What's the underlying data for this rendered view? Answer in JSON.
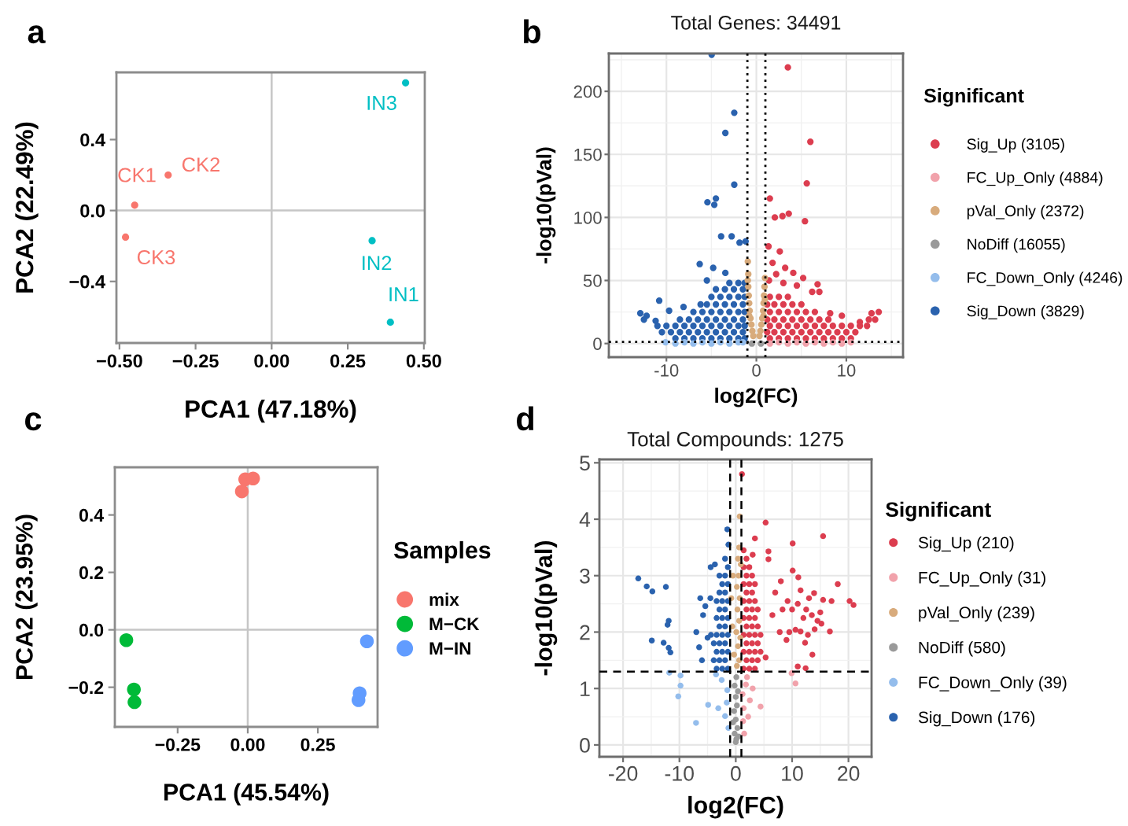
{
  "chart_data": [
    {
      "type": "scatter",
      "xlabel": "PCA1 (47.18%)",
      "ylabel": "PCA2 (22.49%)",
      "xlim": [
        -0.51,
        0.503
      ],
      "ylim": [
        -0.747,
        0.779
      ],
      "xticks": [
        {
          "value": -0.5,
          "label": "−0.50"
        },
        {
          "value": -0.25,
          "label": "−0.25"
        },
        {
          "value": 0,
          "label": "0.00"
        },
        {
          "value": 0.25,
          "label": "0.25"
        },
        {
          "value": 0.5,
          "label": "0.50"
        }
      ],
      "yticks": [
        {
          "value": -0.4,
          "label": "−0.4"
        },
        {
          "value": 0,
          "label": "0.0"
        },
        {
          "value": 0.4,
          "label": "0.4"
        }
      ],
      "marker": "circle",
      "series": [
        {
          "color": "#f8766d",
          "x": [
            -0.45,
            -0.34,
            -0.48
          ],
          "values": [
            0.03,
            0.2,
            -0.15
          ]
        },
        {
          "color": "#00bfc4",
          "x": [
            0.39,
            0.33,
            0.44
          ],
          "values": [
            -0.63,
            -0.17,
            0.72
          ]
        }
      ],
      "ref_lines": [
        {
          "axis": "x",
          "value": 0,
          "color": "#c6c6c6"
        },
        {
          "axis": "y",
          "value": 0,
          "color": "#c6c6c6"
        }
      ],
      "annotations": [
        "a",
        {
          "text": "CK1",
          "x": -0.45,
          "y": 0.03
        },
        {
          "text": "CK2",
          "x": -0.34,
          "y": 0.2
        },
        {
          "text": "CK3",
          "x": -0.48,
          "y": -0.15
        },
        {
          "text": "IN1",
          "x": 0.39,
          "y": -0.63
        },
        {
          "text": "IN2",
          "x": 0.33,
          "y": -0.17
        },
        {
          "text": "IN3",
          "x": 0.44,
          "y": 0.72
        }
      ]
    },
    {
      "type": "scatter",
      "title": "Total Genes: 34491",
      "xlabel": "log2(FC)",
      "ylabel": "-log10(pVal)",
      "legend_title": "Significant",
      "legend": "right",
      "grid": true,
      "marker": "circle",
      "xlim": [
        -16.4,
        16.3
      ],
      "ylim": [
        -10.8,
        230
      ],
      "xticks": [
        -10,
        0,
        10
      ],
      "yticks": [
        0,
        50,
        100,
        150,
        200
      ],
      "series": [
        {
          "name": "Sig_Up (3105)",
          "color": "#dc3d4f",
          "x": [
            3.5,
            6.0,
            5.6,
            1.5,
            2.05,
            2.9,
            3.6,
            5.4,
            1.35,
            2.6,
            1.8,
            3.2,
            4.1,
            2.2,
            5.2,
            1.4,
            4.5,
            6.2,
            7.0,
            6.8,
            3.0,
            12.8,
            13.6,
            11.5,
            9.5,
            8.2,
            1.5,
            2.5,
            3.5,
            4.5,
            5.5,
            6.5,
            7.5,
            8.5,
            9.5,
            10.5,
            1.2,
            2,
            3,
            4,
            5,
            6,
            7,
            8,
            9,
            10,
            11,
            1.5,
            2.5,
            3.5,
            4.5,
            5.5,
            6.5,
            7.5,
            8.5,
            9.5,
            10.5,
            11.5,
            12.3,
            1.2,
            2,
            3,
            4,
            5,
            6,
            7,
            8,
            12.5,
            13.2,
            1.5,
            2.5,
            3.5,
            4.5,
            5.5,
            6.5,
            1.2,
            2,
            3,
            4,
            5,
            1.5,
            2.5,
            3.5
          ],
          "values": [
            219,
            160,
            127,
            115,
            100,
            101,
            103,
            97,
            77,
            73,
            64,
            60,
            56,
            55,
            52,
            50,
            46,
            41,
            41,
            47,
            48,
            24,
            25,
            17,
            22,
            24,
            4,
            4,
            4,
            4,
            4,
            4,
            4,
            4,
            4,
            4,
            9,
            9,
            9,
            9,
            9,
            9,
            9,
            9,
            9,
            9,
            9,
            14,
            14,
            14,
            14,
            14,
            14,
            14,
            14,
            14,
            14,
            14,
            14,
            19,
            19,
            19,
            19,
            19,
            19,
            19,
            19,
            19,
            19,
            25,
            25,
            25,
            25,
            25,
            25,
            31,
            31,
            31,
            31,
            31,
            37,
            37,
            37
          ]
        },
        {
          "name": "FC_Up_Only (4884)",
          "color": "#f1a2ab",
          "x": [
            1.5,
            2.5,
            3.5,
            4.5,
            5.5,
            6.5,
            7.5,
            8.5,
            9.5,
            10.5
          ],
          "values": [
            0,
            1,
            0,
            1,
            0,
            1,
            0,
            1,
            0,
            1
          ]
        },
        {
          "name": "pVal_Only (2372)",
          "color": "#d8ab7c",
          "x": [
            -0.95,
            -0.9,
            -0.9,
            -0.85,
            -0.8,
            -0.75,
            -0.65,
            -0.55,
            -0.45,
            -0.35,
            0.35,
            0.45,
            0.55,
            0.65,
            0.75,
            0.8,
            0.85,
            0.9,
            0.95,
            -0.95,
            0.95,
            -0.8,
            0.8
          ],
          "values": [
            65,
            55,
            45,
            38,
            32,
            26,
            20,
            15,
            10,
            6,
            6,
            10,
            15,
            20,
            26,
            32,
            38,
            45,
            52,
            50,
            35,
            22,
            22
          ]
        },
        {
          "name": "NoDiff (16055)",
          "color": "#9a9a9a",
          "x": [
            -0.5,
            0.5
          ],
          "values": [
            0,
            0
          ]
        },
        {
          "name": "FC_Down_Only (4246)",
          "color": "#94bdec",
          "x": [
            -10.1,
            -9,
            -8,
            -7,
            -6,
            -5,
            -4,
            -3,
            -2,
            -1.5
          ],
          "values": [
            1,
            0,
            1,
            0,
            1,
            0,
            1,
            0,
            1,
            1
          ]
        },
        {
          "name": "Sig_Down (3829)",
          "color": "#2a62ae",
          "x": [
            -4.97,
            -2.46,
            -3.45,
            -2.46,
            -5.44,
            -4.5,
            -4.68,
            -3.92,
            -2.75,
            -1.87,
            -1.2,
            -6.3,
            -4.8,
            -3.45,
            -5.5,
            -10.8,
            -12.9,
            -8.1,
            -9.7,
            -12.2,
            -11.2,
            -9,
            -8,
            -7,
            -6,
            -5,
            -4,
            -3,
            -2,
            -1.3,
            -10.5,
            -9.5,
            -8.5,
            -7.5,
            -6.5,
            -5.5,
            -4.5,
            -3.5,
            -2.5,
            -1.5,
            -11,
            -10,
            -9,
            -8,
            -7,
            -6,
            -5,
            -4,
            -3,
            -2,
            -1.3,
            -12.5,
            -8.5,
            -7.5,
            -6.5,
            -5.5,
            -4.5,
            -3.5,
            -2.5,
            -1.5,
            -7,
            -6,
            -5,
            -4,
            -3,
            -2,
            -1.3,
            -6.2,
            -5.5,
            -4.5,
            -3.5,
            -2.5,
            -1.5,
            -5,
            -4,
            -3,
            -2,
            -1.3,
            -4.5,
            -3.5,
            -2.5,
            -1.5,
            -3,
            -2,
            -1.3
          ],
          "values": [
            229,
            183,
            167,
            126,
            112,
            115,
            110,
            85,
            85,
            80,
            81,
            63,
            60,
            56,
            50,
            34,
            24,
            29,
            26,
            22,
            18,
            4,
            4,
            4,
            4,
            4,
            4,
            4,
            4,
            4,
            9,
            9,
            9,
            9,
            9,
            9,
            9,
            9,
            9,
            9,
            14,
            14,
            14,
            14,
            14,
            14,
            14,
            14,
            14,
            14,
            14,
            19,
            19,
            19,
            19,
            19,
            19,
            19,
            19,
            19,
            25,
            25,
            25,
            25,
            25,
            25,
            25,
            31,
            31,
            31,
            31,
            31,
            31,
            37,
            37,
            37,
            37,
            37,
            43,
            43,
            43,
            43,
            48,
            48,
            48
          ]
        }
      ],
      "ref_lines": [
        {
          "axis": "x",
          "value": -1,
          "line_style": "dotted"
        },
        {
          "axis": "x",
          "value": 1,
          "line_style": "dotted"
        },
        {
          "axis": "y",
          "value": 1.3,
          "line_style": "dotted"
        }
      ],
      "annotations": [
        "b"
      ]
    },
    {
      "type": "scatter",
      "xlabel": "PCA1 (45.54%)",
      "ylabel": "PCA2 (23.95%)",
      "legend_title": "Samples",
      "legend": "right",
      "marker": "circle",
      "xlim": [
        -0.474,
        0.463
      ],
      "ylim": [
        -0.338,
        0.566
      ],
      "xticks": [
        {
          "value": -0.25,
          "label": "−0.25"
        },
        {
          "value": 0,
          "label": "0.00"
        },
        {
          "value": 0.25,
          "label": "0.25"
        }
      ],
      "yticks": [
        {
          "value": -0.2,
          "label": "−0.2"
        },
        {
          "value": 0,
          "label": "0.0"
        },
        {
          "value": 0.2,
          "label": "0.2"
        },
        {
          "value": 0.4,
          "label": "0.4"
        }
      ],
      "series": [
        {
          "name": "mix",
          "color": "#f8766d",
          "x": [
            -0.021,
            -0.009,
            0.019
          ],
          "values": [
            0.482,
            0.524,
            0.527
          ]
        },
        {
          "name": "M−CK",
          "color": "#00ba38",
          "x": [
            -0.433,
            -0.406,
            -0.404
          ],
          "values": [
            -0.036,
            -0.208,
            -0.252
          ]
        },
        {
          "name": "M−IN",
          "color": "#619cff",
          "x": [
            0.425,
            0.399,
            0.395
          ],
          "values": [
            -0.04,
            -0.221,
            -0.245
          ]
        }
      ],
      "ref_lines": [
        {
          "axis": "x",
          "value": 0,
          "color": "#c6c6c6"
        },
        {
          "axis": "y",
          "value": 0,
          "color": "#c6c6c6"
        }
      ],
      "annotations": [
        "c"
      ]
    },
    {
      "type": "scatter",
      "title": "Total Compounds: 1275",
      "xlabel": "log2(FC)",
      "ylabel": "-log10(pVal)",
      "legend_title": "Significant",
      "legend": "right",
      "grid": true,
      "marker": "circle",
      "xlim": [
        -24.2,
        24.1
      ],
      "ylim": [
        -0.21,
        5.06
      ],
      "xticks": [
        -20,
        -10,
        0,
        10,
        20
      ],
      "yticks": [
        0,
        1,
        2,
        3,
        4,
        5
      ],
      "series": [
        {
          "name": "Sig_Up (210)",
          "color": "#dc3d4f",
          "x": [
            1.1,
            5.3,
            3.4,
            15.5,
            10.1,
            5.8,
            5.8,
            3.0,
            10.1,
            11.1,
            18.1,
            20.2,
            20.9,
            17.0,
            15.5,
            13.9,
            11.5,
            9.2,
            16.7,
            11.5,
            10.6,
            9.0,
            12.3,
            13.6,
            11.0,
            12.4,
            5.3,
            12.5,
            13.5,
            14.5,
            15.0,
            14.0,
            12.0,
            13.0,
            11.0,
            10.0,
            15.2,
            8.3,
            7.8,
            6.5,
            7.0,
            8.0,
            9.5,
            12.8,
            1.4,
            2.4,
            3.4,
            1.9,
            2.9,
            3.9,
            1.4,
            2.4,
            3.4,
            4.4,
            1.9,
            2.9,
            3.9,
            1.4,
            2.4,
            3.4,
            4.4,
            1.9,
            2.9,
            3.9,
            1.4,
            2.4,
            3.4,
            1.9,
            2.9,
            3.9,
            1.4,
            2.4,
            3.4,
            1.9,
            2.9,
            1.4,
            2.4,
            3.4,
            1.9,
            2.9,
            1.4,
            2.4,
            1.9,
            1.4
          ],
          "values": [
            4.8,
            3.94,
            3.66,
            3.7,
            3.57,
            3.43,
            3.29,
            3.37,
            3.09,
            2.97,
            2.85,
            2.55,
            2.48,
            2.55,
            2.57,
            2.69,
            2.74,
            2.55,
            2.01,
            2.01,
            2.04,
            1.86,
            1.81,
            1.6,
            1.39,
            1.36,
            1.55,
            2.4,
            2.3,
            2.2,
            2.35,
            2.05,
            2.25,
            2.6,
            2.5,
            2.4,
            2.15,
            2.4,
            2.0,
            2.3,
            2.7,
            2.9,
            2.0,
            1.95,
            1.35,
            1.35,
            1.35,
            1.5,
            1.5,
            1.5,
            1.65,
            1.65,
            1.65,
            1.65,
            1.8,
            1.8,
            1.8,
            1.95,
            1.95,
            1.95,
            1.95,
            2.1,
            2.1,
            2.1,
            2.25,
            2.25,
            2.25,
            2.4,
            2.4,
            2.4,
            2.55,
            2.55,
            2.55,
            2.7,
            2.7,
            2.85,
            2.85,
            2.85,
            3.0,
            3.0,
            3.15,
            3.15,
            3.3,
            3.45
          ]
        },
        {
          "name": "FC_Up_Only (31)",
          "color": "#f1a2ab",
          "x": [
            1.8,
            2.5,
            4.4,
            1.3,
            9.9,
            10.6,
            1.5,
            2.0,
            3.0,
            1.2,
            2.2,
            1.4
          ],
          "values": [
            1.07,
            0.79,
            0.68,
            0.42,
            1.27,
            1.09,
            0.2,
            1.2,
            1.0,
            0.9,
            0.5,
            0.65
          ]
        },
        {
          "name": "pVal_Only (239)",
          "color": "#d8ab7c",
          "x": [
            0.7,
            0.6,
            0.4,
            0.5,
            0.2,
            0.7,
            0.3,
            0.6,
            0.1,
            0.8,
            0.4,
            -0.3,
            0.6,
            -0.6,
            0.2,
            -0.8,
            0.9,
            -0.5
          ],
          "values": [
            4.05,
            3.5,
            3.3,
            3.0,
            2.8,
            2.6,
            2.4,
            2.2,
            2.0,
            1.9,
            1.75,
            1.6,
            1.5,
            2.1,
            1.4,
            2.6,
            3.2,
            3.0
          ]
        },
        {
          "name": "NoDiff (580)",
          "color": "#9a9a9a",
          "x": [
            0,
            -0.2,
            0.3,
            0,
            -0.3,
            0.2,
            0,
            0.4,
            -0.2,
            0.1,
            -0.5,
            0.5,
            0.1
          ],
          "values": [
            0.05,
            0.2,
            0.3,
            0.45,
            0.6,
            0.7,
            0.85,
            0.95,
            1.05,
            1.2,
            0.4,
            0.15,
            0.1
          ]
        },
        {
          "name": "FC_Down_Only (39)",
          "color": "#94bdec",
          "x": [
            -11.8,
            -9.8,
            -9.8,
            -10.2,
            -7.05,
            -4.9,
            -3.1,
            -1.9,
            -1.5,
            -2.5,
            -1.3,
            -1.6,
            -3.5
          ],
          "values": [
            1.28,
            1.23,
            1.05,
            0.86,
            0.39,
            0.71,
            0.65,
            0.51,
            0.97,
            1.15,
            0.3,
            0.75,
            1.25
          ]
        },
        {
          "name": "Sig_Down (176)",
          "color": "#2a62ae",
          "x": [
            -17.3,
            -15.8,
            -14.8,
            -12.4,
            -11.9,
            -12.1,
            -14.9,
            -12.8,
            -11.9,
            -11.6,
            -6.5,
            -1.5,
            -1.3,
            -4.45,
            -3.7,
            -6.3,
            -5.4,
            -5.8,
            -4.5,
            -7.0,
            -6.0,
            -5.0,
            -1.4,
            -2.4,
            -3.4,
            -1.9,
            -2.9,
            -3.9,
            -1.4,
            -2.4,
            -3.4,
            -1.9,
            -2.9,
            -3.9,
            -1.4,
            -2.4,
            -3.4,
            -4.4,
            -1.9,
            -2.9,
            -1.4,
            -2.4,
            -3.4,
            -1.9,
            -2.9,
            -1.4,
            -2.4,
            -3.4,
            -1.9,
            -2.9,
            -1.4,
            -2.4,
            -1.9,
            -2.9,
            -1.4,
            -1.9
          ],
          "values": [
            2.95,
            2.81,
            2.72,
            2.8,
            2.2,
            2.13,
            1.85,
            1.81,
            1.72,
            1.64,
            1.73,
            3.82,
            3.55,
            3.15,
            3.2,
            2.6,
            2.46,
            2.3,
            2.6,
            2.0,
            1.5,
            1.9,
            1.35,
            1.35,
            1.35,
            1.5,
            1.5,
            1.5,
            1.65,
            1.65,
            1.65,
            1.8,
            1.8,
            1.8,
            1.95,
            1.95,
            1.95,
            1.95,
            2.1,
            2.1,
            2.25,
            2.25,
            2.25,
            2.4,
            2.4,
            2.55,
            2.55,
            2.55,
            2.7,
            2.7,
            2.85,
            2.85,
            3.0,
            3.0,
            3.15,
            3.3
          ]
        }
      ],
      "ref_lines": [
        {
          "axis": "x",
          "value": -1,
          "line_style": "dashed"
        },
        {
          "axis": "x",
          "value": 1,
          "line_style": "dashed"
        },
        {
          "axis": "y",
          "value": 1.3,
          "line_style": "dashed"
        }
      ],
      "annotations": [
        "d"
      ]
    }
  ]
}
